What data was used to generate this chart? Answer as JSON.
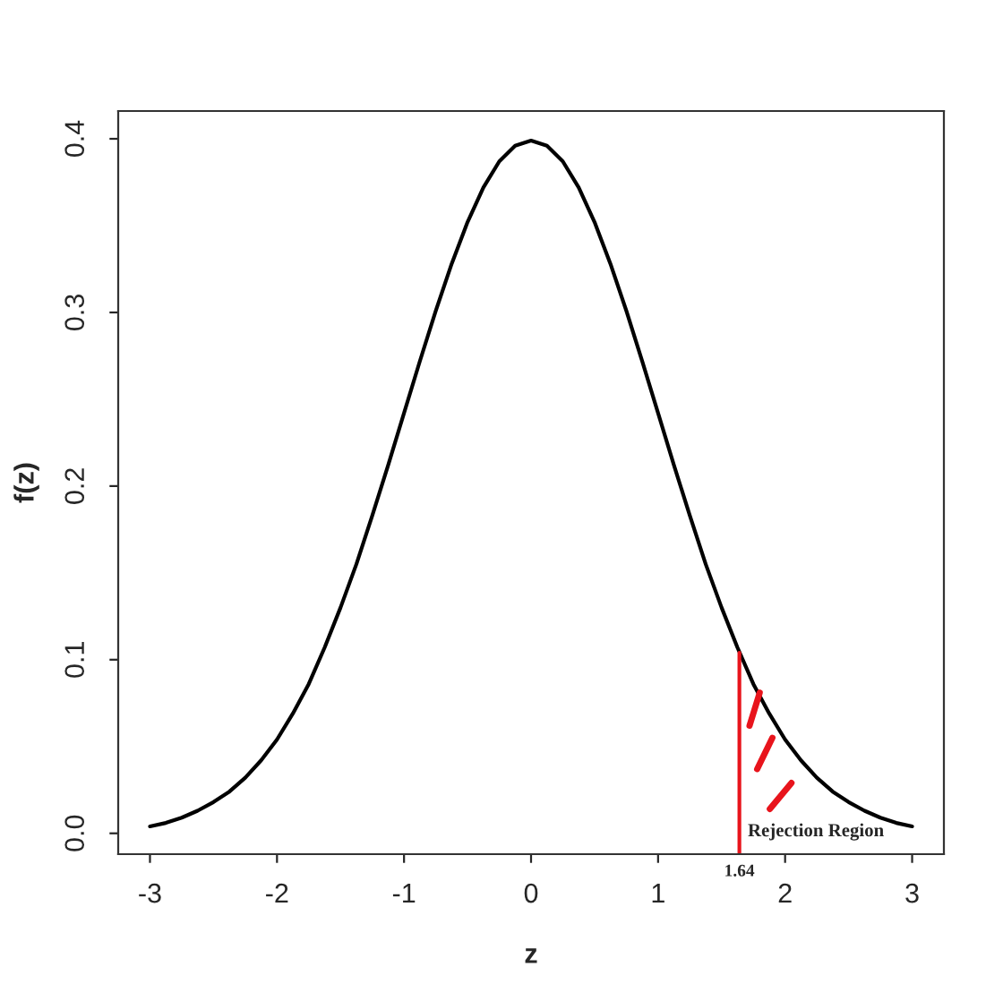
{
  "chart_data": {
    "type": "line",
    "xlabel": "z",
    "ylabel": "f(z)",
    "x": [
      -3,
      -2.875,
      -2.75,
      -2.625,
      -2.5,
      -2.375,
      -2.25,
      -2.125,
      -2,
      -1.875,
      -1.75,
      -1.625,
      -1.5,
      -1.375,
      -1.25,
      -1.125,
      -1,
      -0.875,
      -0.75,
      -0.625,
      -0.5,
      -0.375,
      -0.25,
      -0.125,
      0,
      0.125,
      0.25,
      0.375,
      0.5,
      0.625,
      0.75,
      0.875,
      1,
      1.125,
      1.25,
      1.375,
      1.5,
      1.625,
      1.75,
      1.875,
      2,
      2.125,
      2.25,
      2.375,
      2.5,
      2.625,
      2.75,
      2.875,
      3
    ],
    "series": [
      {
        "color": "#000000",
        "values": [
          0.004,
          0.006,
          0.009,
          0.013,
          0.018,
          0.024,
          0.032,
          0.042,
          0.054,
          0.069,
          0.086,
          0.107,
          0.13,
          0.155,
          0.183,
          0.212,
          0.242,
          0.272,
          0.301,
          0.328,
          0.352,
          0.372,
          0.387,
          0.396,
          0.399,
          0.396,
          0.387,
          0.372,
          0.352,
          0.328,
          0.301,
          0.272,
          0.242,
          0.212,
          0.183,
          0.155,
          0.13,
          0.107,
          0.086,
          0.069,
          0.054,
          0.042,
          0.032,
          0.024,
          0.018,
          0.013,
          0.009,
          0.006,
          0.004
        ]
      },
      {
        "type": "line",
        "color": "#e8141c",
        "x": [
          1.64,
          1.64
        ],
        "values": [
          -0.012,
          0.104
        ]
      }
    ],
    "xlim": [
      -3.25,
      3.25
    ],
    "ylim": [
      -0.012,
      0.416
    ],
    "xticks": [
      -3,
      -2,
      -1,
      0,
      1,
      2,
      3
    ],
    "yticks": [
      {
        "value": 0,
        "label": "0.0"
      },
      0.1,
      0.2,
      0.3,
      0.4
    ],
    "annotations": [
      {
        "text": "1.64",
        "x": 1.64,
        "y": -0.012
      },
      "Rejection Region"
    ],
    "grid": false,
    "line_style": "solid",
    "marker": "none"
  }
}
